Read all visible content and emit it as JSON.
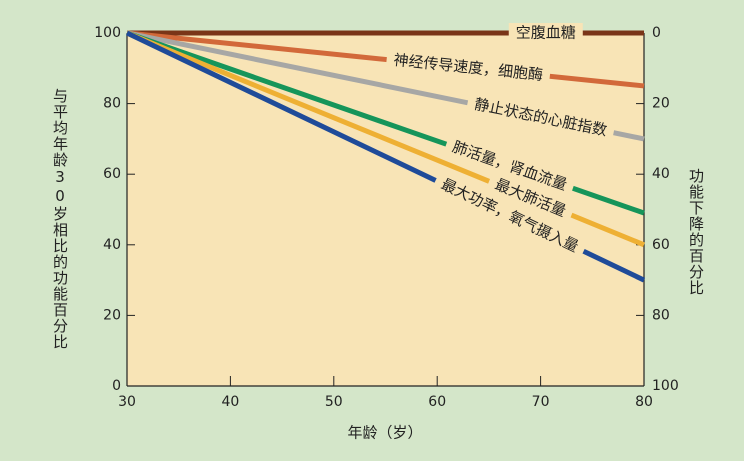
{
  "chart_data": {
    "type": "line",
    "x_label": "年龄（岁）",
    "y_label": "与平均年龄30岁相比的功能百分比",
    "y2_label": "功能下降的百分比",
    "x": [
      30,
      80
    ],
    "xlim": [
      30,
      80
    ],
    "xticks": [
      30,
      40,
      50,
      60,
      70,
      80
    ],
    "ylim": [
      0,
      100
    ],
    "yticks": [
      0,
      20,
      40,
      60,
      80,
      100
    ],
    "y2lim": [
      100,
      0
    ],
    "y2ticks": [
      0,
      20,
      40,
      60,
      80,
      100
    ],
    "series": [
      {
        "name": "空腹血糖",
        "color": "#7a3518",
        "values": [
          100,
          100
        ]
      },
      {
        "name": "神经传导速度，细胞酶",
        "color": "#d2693a",
        "values": [
          100,
          85
        ]
      },
      {
        "name": "静止状态的心脏指数",
        "color": "#a7a7a5",
        "values": [
          100,
          70
        ]
      },
      {
        "name": "肺活量，肾血流量",
        "color": "#16955a",
        "values": [
          100,
          49
        ]
      },
      {
        "name": "最大肺活量",
        "color": "#eeb034",
        "values": [
          100,
          40
        ]
      },
      {
        "name": "最大功率，氧气摄入量",
        "color": "#1f4b99",
        "values": [
          100,
          30
        ]
      }
    ]
  }
}
